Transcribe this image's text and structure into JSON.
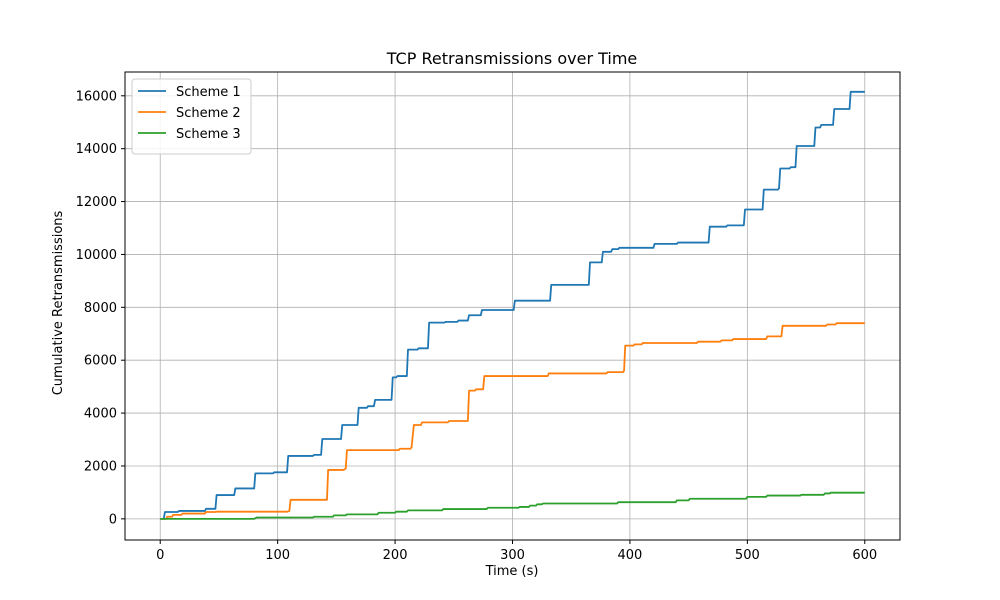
{
  "chart_data": {
    "type": "line",
    "title": "TCP Retransmissions over Time",
    "xlabel": "Time (s)",
    "ylabel": "Cumulative Retransmissions",
    "xlim": [
      -30,
      630
    ],
    "ylim": [
      -800,
      16900
    ],
    "xticks": [
      0,
      100,
      200,
      300,
      400,
      500,
      600
    ],
    "yticks": [
      0,
      2000,
      4000,
      6000,
      8000,
      10000,
      12000,
      14000,
      16000
    ],
    "grid": true,
    "legend_position": "upper-left",
    "series": [
      {
        "name": "Scheme 1",
        "color": "#1f77b4",
        "points": [
          [
            0,
            0
          ],
          [
            3,
            0
          ],
          [
            4,
            260
          ],
          [
            15,
            260
          ],
          [
            16,
            300
          ],
          [
            38,
            300
          ],
          [
            39,
            380
          ],
          [
            47,
            380
          ],
          [
            48,
            900
          ],
          [
            63,
            900
          ],
          [
            64,
            1150
          ],
          [
            80,
            1150
          ],
          [
            81,
            1720
          ],
          [
            96,
            1720
          ],
          [
            97,
            1760
          ],
          [
            108,
            1760
          ],
          [
            109,
            2380
          ],
          [
            130,
            2380
          ],
          [
            131,
            2420
          ],
          [
            137,
            2420
          ],
          [
            138,
            3020
          ],
          [
            154,
            3020
          ],
          [
            155,
            3550
          ],
          [
            168,
            3550
          ],
          [
            169,
            4200
          ],
          [
            176,
            4200
          ],
          [
            177,
            4260
          ],
          [
            182,
            4260
          ],
          [
            183,
            4500
          ],
          [
            197,
            4500
          ],
          [
            198,
            5350
          ],
          [
            201,
            5350
          ],
          [
            202,
            5400
          ],
          [
            210,
            5400
          ],
          [
            211,
            6400
          ],
          [
            219,
            6400
          ],
          [
            220,
            6450
          ],
          [
            228,
            6450
          ],
          [
            229,
            7420
          ],
          [
            242,
            7420
          ],
          [
            243,
            7450
          ],
          [
            253,
            7450
          ],
          [
            254,
            7500
          ],
          [
            262,
            7500
          ],
          [
            263,
            7700
          ],
          [
            273,
            7700
          ],
          [
            274,
            7900
          ],
          [
            301,
            7900
          ],
          [
            302,
            8250
          ],
          [
            332,
            8250
          ],
          [
            333,
            8850
          ],
          [
            365,
            8850
          ],
          [
            366,
            9700
          ],
          [
            376,
            9700
          ],
          [
            377,
            10100
          ],
          [
            384,
            10100
          ],
          [
            385,
            10200
          ],
          [
            390,
            10200
          ],
          [
            391,
            10250
          ],
          [
            420,
            10250
          ],
          [
            421,
            10400
          ],
          [
            440,
            10400
          ],
          [
            441,
            10450
          ],
          [
            467,
            10450
          ],
          [
            468,
            11050
          ],
          [
            482,
            11050
          ],
          [
            483,
            11100
          ],
          [
            497,
            11100
          ],
          [
            498,
            11700
          ],
          [
            513,
            11700
          ],
          [
            514,
            12450
          ],
          [
            526,
            12450
          ],
          [
            527,
            12500
          ],
          [
            528,
            13250
          ],
          [
            536,
            13250
          ],
          [
            537,
            13300
          ],
          [
            541,
            13300
          ],
          [
            542,
            14100
          ],
          [
            557,
            14100
          ],
          [
            558,
            14800
          ],
          [
            562,
            14800
          ],
          [
            563,
            14900
          ],
          [
            573,
            14900
          ],
          [
            574,
            15500
          ],
          [
            587,
            15500
          ],
          [
            588,
            16150
          ],
          [
            600,
            16150
          ]
        ]
      },
      {
        "name": "Scheme 2",
        "color": "#ff7f0e",
        "points": [
          [
            0,
            0
          ],
          [
            5,
            0
          ],
          [
            6,
            80
          ],
          [
            10,
            80
          ],
          [
            11,
            150
          ],
          [
            18,
            150
          ],
          [
            19,
            200
          ],
          [
            38,
            200
          ],
          [
            39,
            260
          ],
          [
            47,
            260
          ],
          [
            48,
            270
          ],
          [
            108,
            270
          ],
          [
            110,
            300
          ],
          [
            111,
            720
          ],
          [
            142,
            720
          ],
          [
            143,
            1850
          ],
          [
            156,
            1850
          ],
          [
            158,
            1900
          ],
          [
            159,
            2600
          ],
          [
            203,
            2600
          ],
          [
            204,
            2650
          ],
          [
            213,
            2650
          ],
          [
            214,
            2700
          ],
          [
            216,
            3550
          ],
          [
            222,
            3550
          ],
          [
            223,
            3650
          ],
          [
            245,
            3650
          ],
          [
            246,
            3700
          ],
          [
            262,
            3700
          ],
          [
            263,
            4850
          ],
          [
            268,
            4850
          ],
          [
            269,
            4900
          ],
          [
            275,
            4900
          ],
          [
            276,
            5400
          ],
          [
            330,
            5400
          ],
          [
            331,
            5500
          ],
          [
            380,
            5500
          ],
          [
            381,
            5550
          ],
          [
            394,
            5550
          ],
          [
            395,
            5600
          ],
          [
            396,
            6550
          ],
          [
            403,
            6550
          ],
          [
            404,
            6600
          ],
          [
            410,
            6600
          ],
          [
            411,
            6650
          ],
          [
            457,
            6650
          ],
          [
            458,
            6700
          ],
          [
            477,
            6700
          ],
          [
            478,
            6750
          ],
          [
            487,
            6750
          ],
          [
            488,
            6800
          ],
          [
            516,
            6800
          ],
          [
            517,
            6900
          ],
          [
            529,
            6900
          ],
          [
            530,
            7300
          ],
          [
            567,
            7300
          ],
          [
            568,
            7350
          ],
          [
            575,
            7350
          ],
          [
            576,
            7400
          ],
          [
            600,
            7400
          ]
        ]
      },
      {
        "name": "Scheme 3",
        "color": "#2ca02c",
        "points": [
          [
            0,
            0
          ],
          [
            80,
            0
          ],
          [
            82,
            50
          ],
          [
            130,
            50
          ],
          [
            131,
            80
          ],
          [
            147,
            80
          ],
          [
            148,
            130
          ],
          [
            158,
            130
          ],
          [
            159,
            170
          ],
          [
            185,
            170
          ],
          [
            186,
            230
          ],
          [
            200,
            230
          ],
          [
            201,
            270
          ],
          [
            210,
            270
          ],
          [
            211,
            320
          ],
          [
            240,
            320
          ],
          [
            241,
            370
          ],
          [
            278,
            370
          ],
          [
            279,
            420
          ],
          [
            305,
            420
          ],
          [
            306,
            450
          ],
          [
            314,
            450
          ],
          [
            315,
            500
          ],
          [
            320,
            500
          ],
          [
            321,
            550
          ],
          [
            325,
            550
          ],
          [
            326,
            580
          ],
          [
            389,
            580
          ],
          [
            390,
            630
          ],
          [
            439,
            630
          ],
          [
            440,
            700
          ],
          [
            450,
            700
          ],
          [
            451,
            760
          ],
          [
            499,
            760
          ],
          [
            500,
            830
          ],
          [
            516,
            830
          ],
          [
            517,
            880
          ],
          [
            545,
            880
          ],
          [
            546,
            910
          ],
          [
            565,
            910
          ],
          [
            566,
            960
          ],
          [
            570,
            960
          ],
          [
            571,
            990
          ],
          [
            600,
            990
          ]
        ]
      }
    ]
  }
}
